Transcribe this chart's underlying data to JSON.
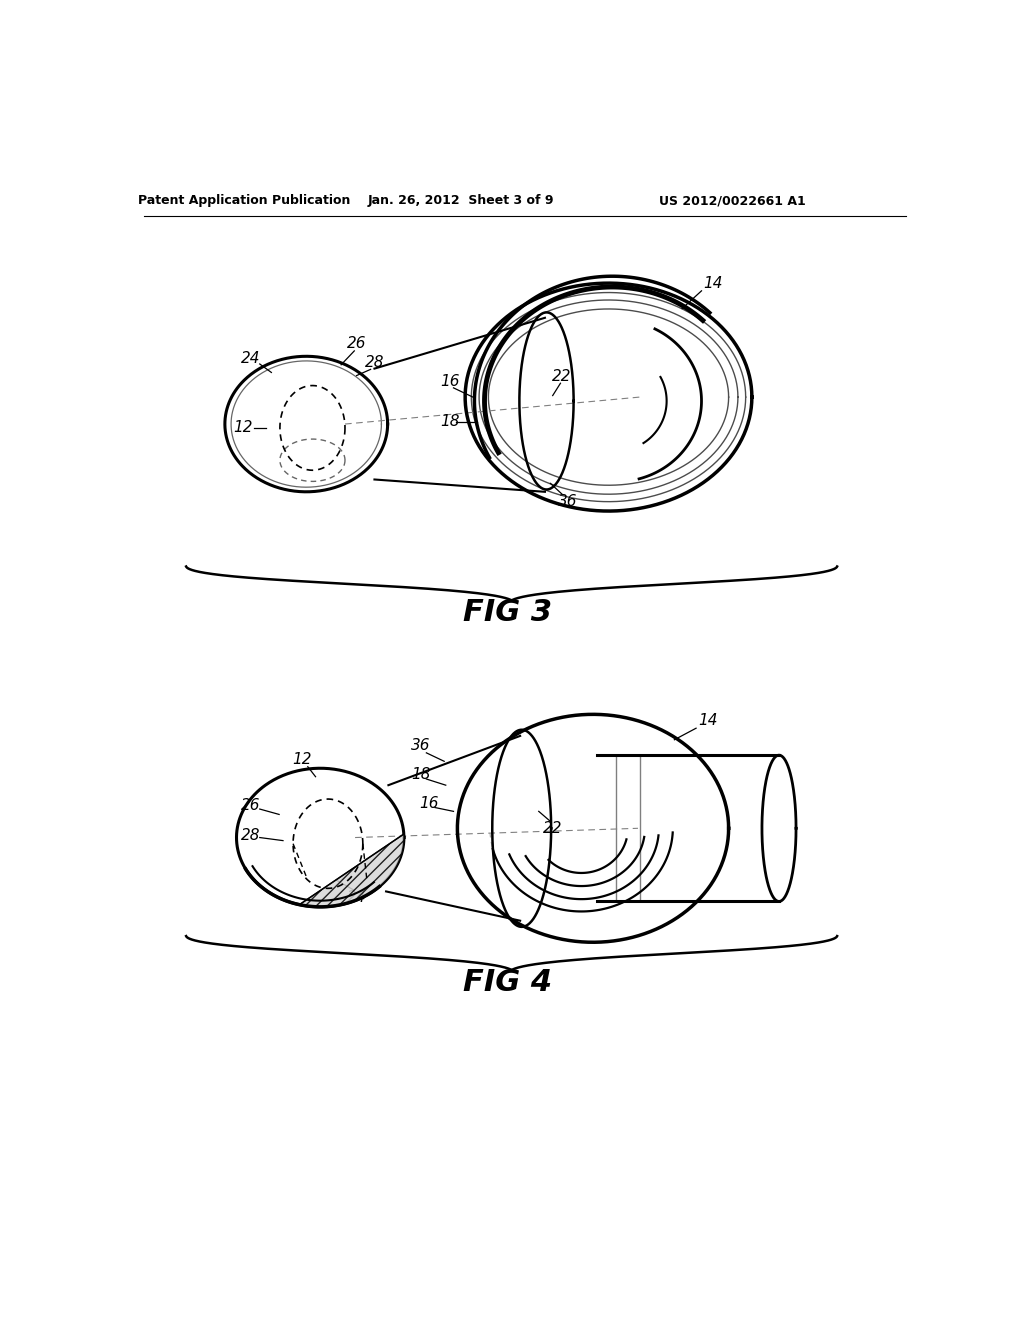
{
  "bg_color": "#ffffff",
  "header_left": "Patent Application Publication",
  "header_mid": "Jan. 26, 2012  Sheet 3 of 9",
  "header_right": "US 2012/0022661 A1",
  "fig3_label": "FIG 3",
  "fig4_label": "FIG 4"
}
